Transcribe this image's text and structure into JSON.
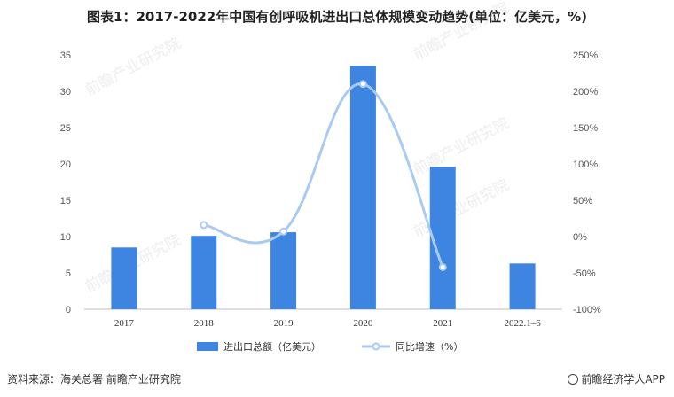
{
  "chart_data": {
    "type": "bar",
    "title": "图表1：2017-2022年中国有创呼吸机进出口总体规模变动趋势(单位：亿美元，%)",
    "categories": [
      "2017",
      "2018",
      "2019",
      "2020",
      "2021",
      "2022.1–6"
    ],
    "series": [
      {
        "name": "进出口总额（亿美元）",
        "type": "bar",
        "axis": "left",
        "color": "#3d85e0",
        "values": [
          8.5,
          10.1,
          10.6,
          33.5,
          19.6,
          6.3
        ]
      },
      {
        "name": "同比增速（%）",
        "type": "line",
        "axis": "right",
        "color": "#a9cbf2",
        "values": [
          null,
          16,
          7,
          210,
          -42,
          null
        ]
      }
    ],
    "y_left": {
      "ylim": [
        0,
        35
      ],
      "ticks": [
        "0",
        "5",
        "10",
        "15",
        "20",
        "25",
        "30",
        "35"
      ]
    },
    "y_right": {
      "ylim": [
        -100,
        250
      ],
      "ticks": [
        "-100%",
        "-50%",
        "0%",
        "50%",
        "100%",
        "150%",
        "200%",
        "250%"
      ]
    },
    "legend_position": "bottom-center",
    "grid": false
  },
  "watermark": {
    "text": "前瞻产业研究院"
  },
  "footer": {
    "source": "资料来源：海关总署 前瞻产业研究院",
    "brand": "前瞻经济学人APP"
  }
}
